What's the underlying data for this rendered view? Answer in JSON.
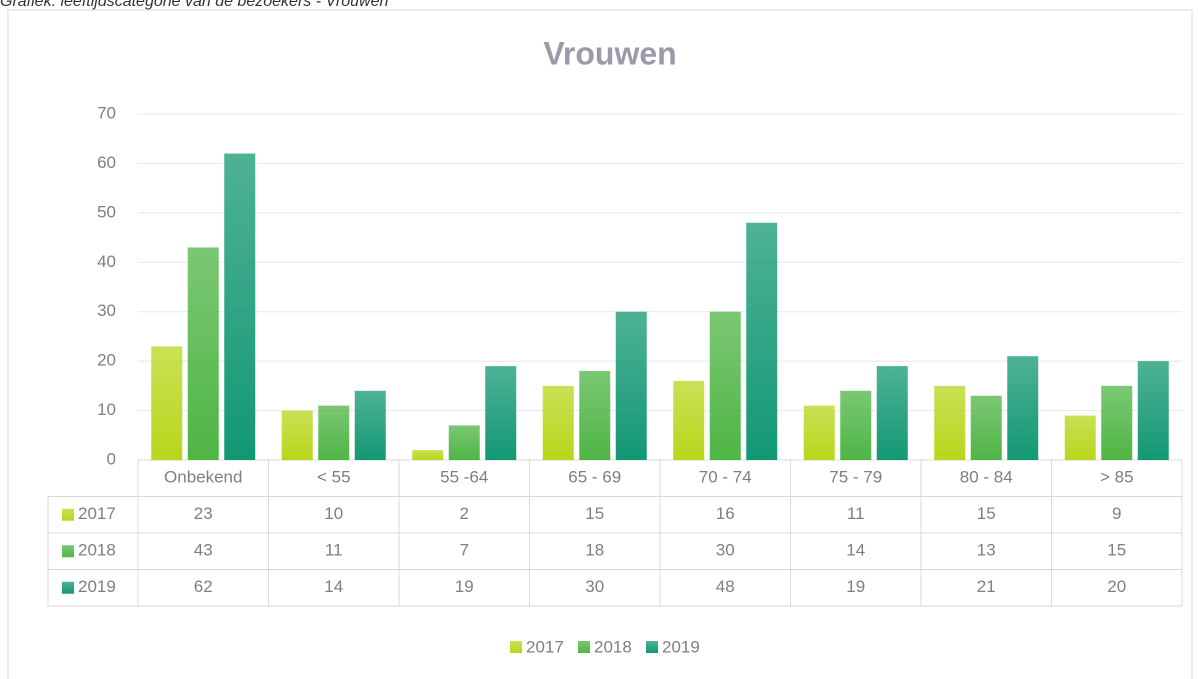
{
  "caption": "Grafiek: leeftijdscategorie van de bezoekers - Vrouwen",
  "chart_data": {
    "type": "bar",
    "title": "Vrouwen",
    "categories": [
      "Onbekend",
      "< 55",
      "55 -64",
      "65 - 69",
      "70 - 74",
      "75 - 79",
      "80 - 84",
      "> 85"
    ],
    "series": [
      {
        "name": "2017",
        "color": "#b9d61c",
        "values": [
          23,
          10,
          2,
          15,
          16,
          11,
          15,
          9
        ]
      },
      {
        "name": "2018",
        "color": "#4fb545",
        "values": [
          43,
          11,
          7,
          18,
          30,
          14,
          13,
          15
        ]
      },
      {
        "name": "2019",
        "color": "#139873",
        "values": [
          62,
          14,
          19,
          30,
          48,
          19,
          21,
          20
        ]
      }
    ],
    "ylim": [
      0,
      70
    ],
    "yticks": [
      0,
      10,
      20,
      30,
      40,
      50,
      60,
      70
    ],
    "grid": true,
    "legend": "bottom",
    "data_table": true
  }
}
